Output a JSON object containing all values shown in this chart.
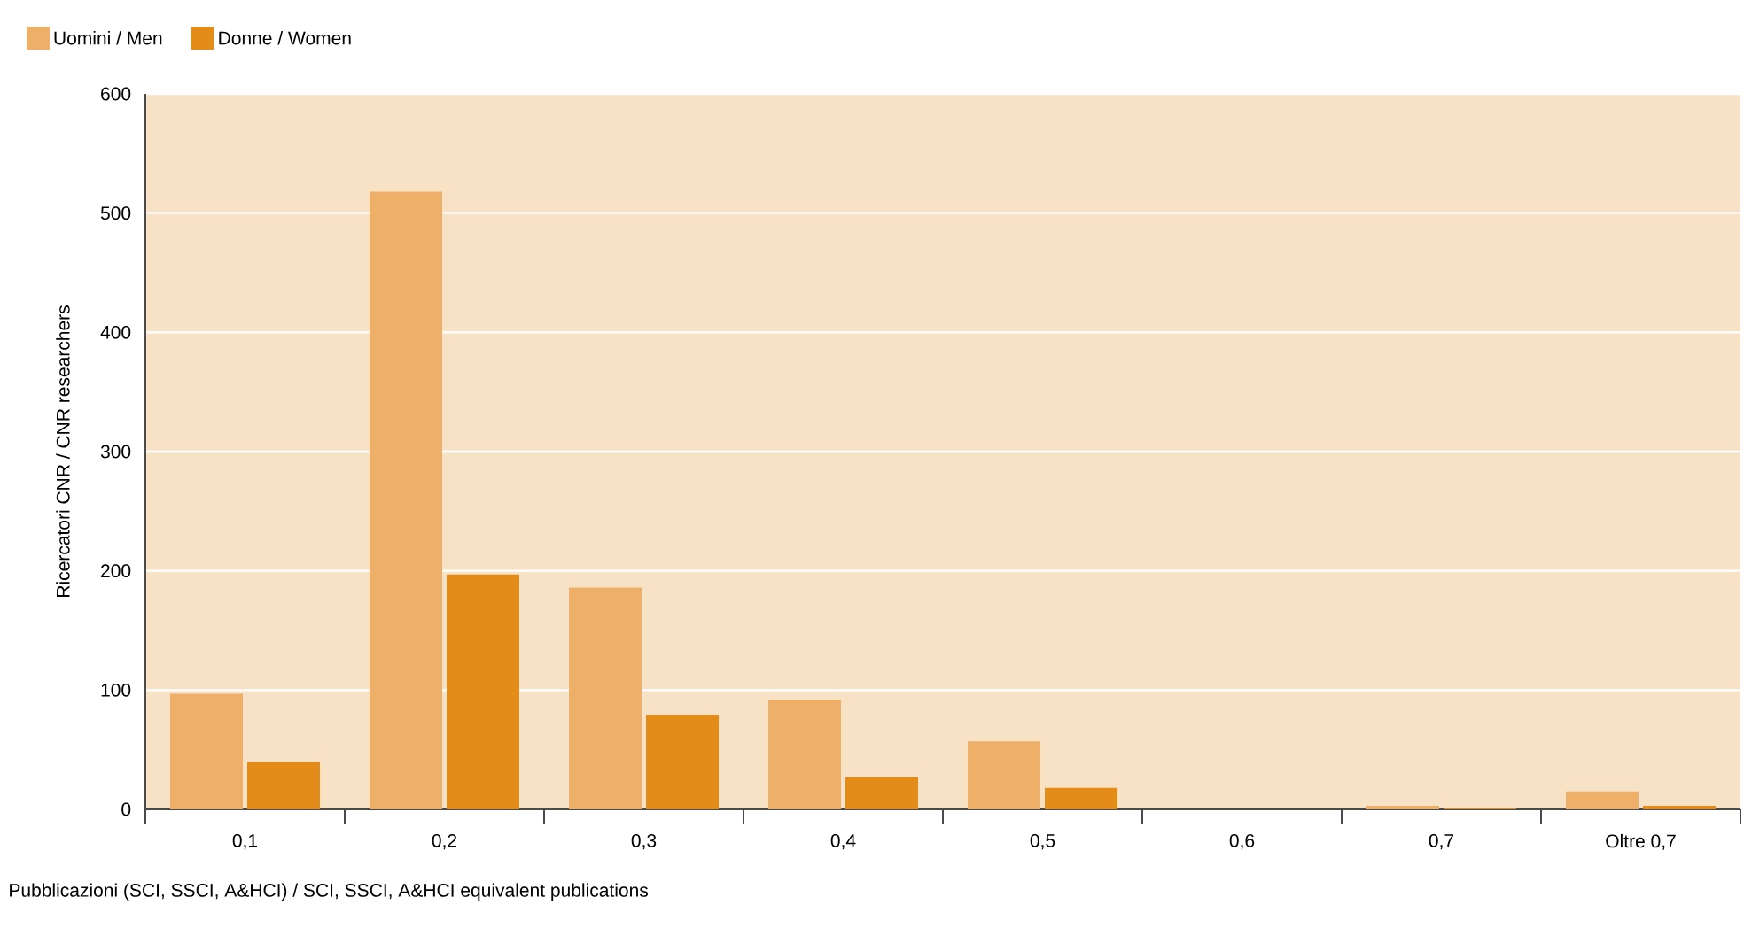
{
  "chart_data": {
    "type": "bar",
    "xlabel": "Pubblicazioni (SCI, SSCI, A&HCI) / SCI, SSCI, A&HCI equivalent publications",
    "ylabel": "Ricercatori CNR / CNR researchers",
    "categories": [
      "0,1",
      "0,2",
      "0,3",
      "0,4",
      "0,5",
      "0,6",
      "0,7",
      "Oltre 0,7"
    ],
    "series": [
      {
        "name": "Uomini / Men",
        "color": "#eeb068",
        "values": [
          97,
          518,
          186,
          92,
          57,
          0,
          3,
          15
        ]
      },
      {
        "name": "Donne / Women",
        "color": "#e38c1a",
        "values": [
          40,
          197,
          79,
          27,
          18,
          0,
          1,
          3
        ]
      }
    ],
    "ylim": [
      0,
      600
    ],
    "yticks": [
      0,
      100,
      200,
      300,
      400,
      500,
      600
    ],
    "grid": "y",
    "legend": "top left"
  }
}
